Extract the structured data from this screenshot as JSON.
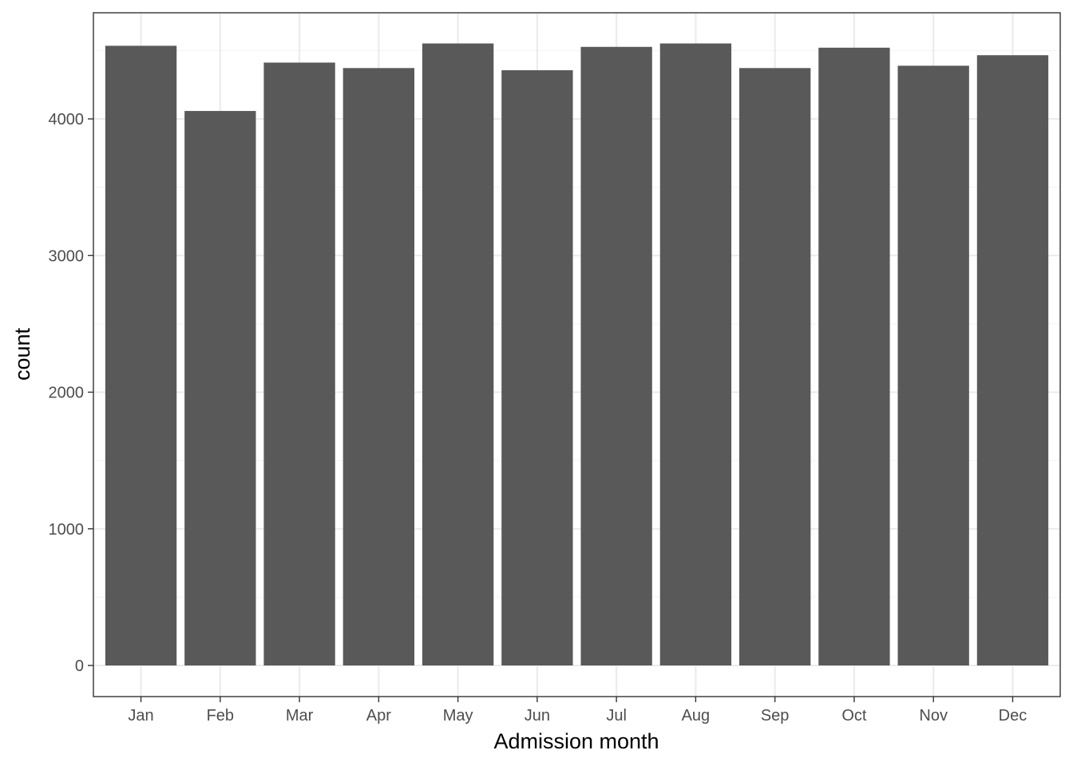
{
  "chart_data": {
    "type": "bar",
    "categories": [
      "Jan",
      "Feb",
      "Mar",
      "Apr",
      "May",
      "Jun",
      "Jul",
      "Aug",
      "Sep",
      "Oct",
      "Nov",
      "Dec"
    ],
    "values": [
      4535,
      4058,
      4412,
      4372,
      4552,
      4356,
      4527,
      4552,
      4372,
      4521,
      4389,
      4466
    ],
    "title": "",
    "xlabel": "Admission month",
    "ylabel": "count",
    "yticks": [
      0,
      1000,
      2000,
      3000,
      4000
    ],
    "ylim": [
      -222,
      4780
    ],
    "grid": true,
    "legend": "none",
    "colors": {
      "bar": "#595959",
      "panel_border": "#333333",
      "grid_major": "#ebebeb",
      "grid_minor": "#f2f2f2",
      "tick": "#333333"
    }
  }
}
